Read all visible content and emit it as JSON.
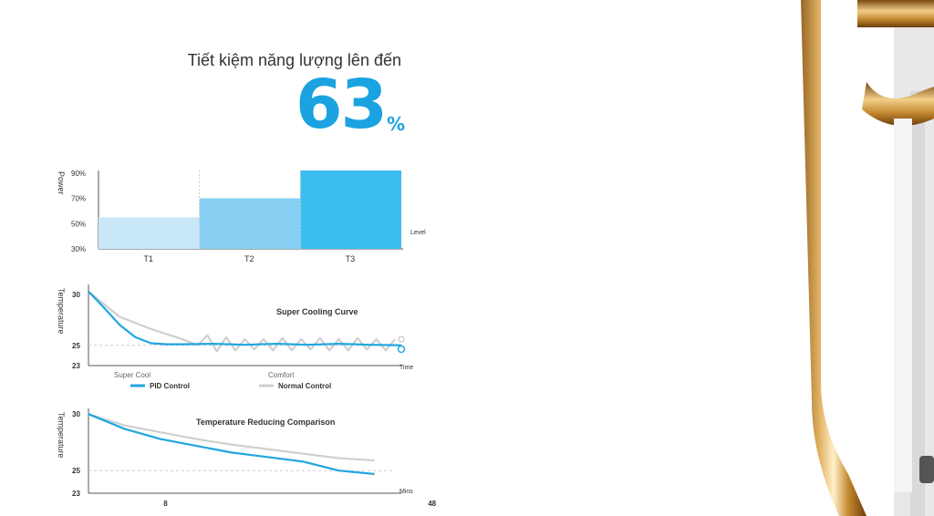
{
  "headline": "Tiết kiệm năng lượng lên đến",
  "saving_value": "63",
  "saving_unit": "%",
  "colors": {
    "accent": "#1aa3e0",
    "pid_line": "#1fa6e0",
    "normal_line": "#cfcfcf",
    "bar_t1": "#c8e8f8",
    "bar_t2": "#86cff2",
    "bar_t3": "#3cbdf0"
  },
  "chart_data": [
    {
      "type": "bar",
      "ylabel": "Power",
      "xlabel": "Level",
      "categories": [
        "T1",
        "T2",
        "T3"
      ],
      "values": [
        55,
        70,
        92
      ],
      "ylim": [
        30,
        92
      ],
      "yticks": [
        "90%",
        "70%",
        "50%",
        "30%"
      ],
      "ytick_values": [
        90,
        70,
        50,
        30
      ]
    },
    {
      "type": "line",
      "title": "Super Cooling Curve",
      "ylabel": "Temperature",
      "xlabel": "Time",
      "ylim": [
        23,
        31
      ],
      "yticks": [
        30,
        25,
        23
      ],
      "regions": [
        "Super Cool",
        "Comfort"
      ],
      "legend": [
        "PID Control",
        "Normal Control"
      ],
      "series": [
        {
          "name": "PID Control",
          "x": [
            0,
            5,
            10,
            15,
            20,
            25,
            30,
            40,
            50,
            60,
            70,
            80,
            90,
            100
          ],
          "y": [
            30.3,
            28.7,
            27.0,
            25.8,
            25.2,
            25.1,
            25.1,
            25.15,
            25.05,
            25.15,
            25.05,
            25.15,
            25.05,
            25.0
          ]
        },
        {
          "name": "Normal Control",
          "x": [
            0,
            10,
            20,
            30,
            35,
            38,
            41,
            44,
            47,
            50,
            53,
            56,
            59,
            62,
            65,
            68,
            71,
            74,
            77,
            80,
            83,
            86,
            89,
            92,
            95,
            98
          ],
          "y": [
            30.3,
            27.8,
            26.6,
            25.6,
            25.0,
            26.0,
            24.4,
            25.8,
            24.5,
            25.6,
            24.6,
            25.6,
            24.5,
            25.7,
            24.5,
            25.6,
            24.6,
            25.7,
            24.5,
            25.6,
            24.5,
            25.7,
            24.6,
            25.6,
            24.5,
            25.6
          ]
        }
      ]
    },
    {
      "type": "line",
      "title": "Temperature Reducing Comparison",
      "ylabel": "Temperature",
      "xlabel": "Mins",
      "ylim": [
        23,
        30.5
      ],
      "yticks": [
        30,
        25,
        23
      ],
      "xticks": [
        "8",
        "48"
      ],
      "series": [
        {
          "name": "PID Control",
          "x": [
            0,
            8,
            16,
            24,
            32,
            40,
            48,
            56,
            64
          ],
          "y": [
            30.0,
            28.7,
            27.8,
            27.2,
            26.6,
            26.2,
            25.8,
            25.0,
            24.7
          ]
        },
        {
          "name": "Normal Control",
          "x": [
            0,
            8,
            16,
            24,
            32,
            40,
            48,
            56,
            64
          ],
          "y": [
            30.0,
            29.0,
            28.4,
            27.8,
            27.3,
            26.9,
            26.5,
            26.1,
            25.9
          ]
        }
      ]
    }
  ]
}
